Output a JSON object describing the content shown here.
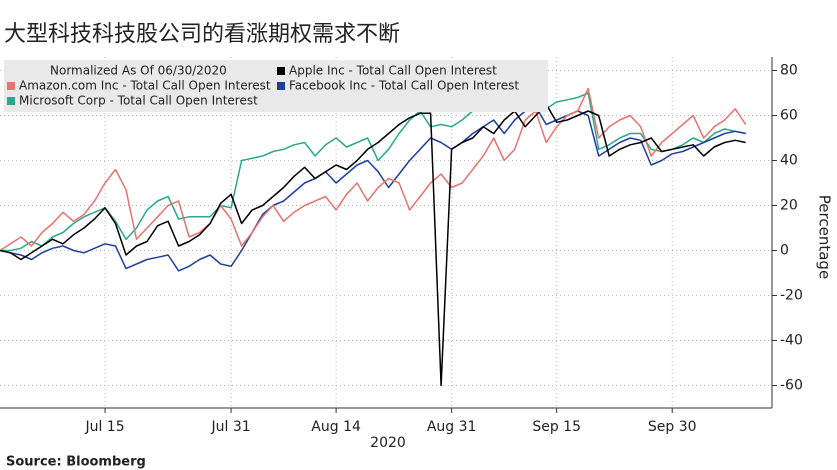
{
  "chart_data": {
    "type": "line",
    "title": "大型科技科技股公司的看涨期权需求不断",
    "legend_title": "Normalized As Of 06/30/2020",
    "y_label": "Percentage",
    "x_label": "2020",
    "source": "Source: Bloomberg",
    "x": [
      0,
      1,
      2,
      3,
      4,
      5,
      6,
      7,
      8,
      9,
      10,
      11,
      12,
      13,
      14,
      15,
      16,
      17,
      18,
      19,
      20,
      21,
      22,
      23,
      24,
      25,
      26,
      27,
      28,
      29,
      30,
      31,
      32,
      33,
      34,
      35,
      36,
      37,
      38,
      39,
      40,
      41,
      42,
      43,
      44,
      45,
      46,
      47,
      48,
      49,
      50,
      51,
      52,
      53,
      54,
      55,
      56,
      57,
      58,
      59,
      60,
      61,
      62,
      63,
      64,
      65,
      66,
      67,
      68,
      69,
      70,
      71
    ],
    "xlim": [
      0,
      73.5
    ],
    "xticks": [
      {
        "value": 10,
        "label": "Jul 15"
      },
      {
        "value": 22,
        "label": "Jul 31"
      },
      {
        "value": 32,
        "label": "Aug 14"
      },
      {
        "value": 43,
        "label": "Aug 31"
      },
      {
        "value": 53,
        "label": "Sep 15"
      },
      {
        "value": 64,
        "label": "Sep 30"
      }
    ],
    "ylim": [
      -70,
      86
    ],
    "yticks": [
      -60,
      -40,
      -20,
      0,
      20,
      40,
      60,
      80
    ],
    "grid": true,
    "series": [
      {
        "name": "Apple Inc - Total Call Open Interest",
        "color": "#000000",
        "values": [
          0,
          -1,
          -4,
          -1,
          2,
          5,
          3,
          7,
          10,
          14,
          19,
          12,
          -2,
          2,
          4,
          11,
          13,
          2,
          4,
          7,
          12,
          21,
          25,
          12,
          18,
          20,
          24,
          28,
          33,
          37,
          32,
          35,
          38,
          36,
          40,
          45,
          48,
          52,
          56,
          59,
          61,
          61,
          -60,
          45,
          48,
          50,
          55,
          52,
          58,
          62,
          55,
          60,
          65,
          57,
          58,
          60,
          62,
          60,
          42,
          45,
          47,
          48,
          50,
          44,
          45,
          46,
          47,
          42,
          46,
          48,
          49,
          48
        ]
      },
      {
        "name": "Amazon.com Inc - Total Call Open Interest",
        "color": "#e8736e",
        "values": [
          0,
          3,
          6,
          2,
          8,
          12,
          17,
          13,
          16,
          22,
          30,
          36,
          27,
          5,
          10,
          15,
          20,
          22,
          6,
          8,
          12,
          20,
          14,
          2,
          8,
          15,
          20,
          13,
          17,
          20,
          22,
          24,
          18,
          25,
          30,
          22,
          28,
          32,
          30,
          18,
          24,
          30,
          34,
          28,
          30,
          36,
          42,
          50,
          40,
          45,
          58,
          62,
          48,
          55,
          60,
          62,
          72,
          50,
          55,
          58,
          60,
          55,
          42,
          48,
          52,
          56,
          60,
          50,
          55,
          58,
          63,
          56
        ]
      },
      {
        "name": "Facebook Inc - Total Call Open Interest",
        "color": "#1f3fa0",
        "values": [
          0,
          -1,
          -2,
          -4,
          -1,
          1,
          2,
          0,
          -1,
          1,
          3,
          2,
          -8,
          -6,
          -4,
          -3,
          -2,
          -9,
          -7,
          -4,
          -2,
          -6,
          -7,
          0,
          8,
          16,
          20,
          22,
          26,
          30,
          32,
          35,
          30,
          34,
          38,
          40,
          35,
          28,
          34,
          40,
          45,
          50,
          48,
          45,
          48,
          52,
          55,
          58,
          52,
          58,
          62,
          64,
          56,
          58,
          60,
          62,
          60,
          42,
          45,
          48,
          50,
          49,
          38,
          40,
          43,
          44,
          46,
          48,
          50,
          52,
          53,
          52
        ]
      },
      {
        "name": "Microsoft Corp - Total Call Open Interest",
        "color": "#2aa88e",
        "values": [
          0,
          0,
          1,
          4,
          2,
          6,
          8,
          12,
          15,
          17,
          19,
          13,
          5,
          10,
          18,
          22,
          24,
          14,
          15,
          15,
          15,
          20,
          19,
          40,
          41,
          42,
          44,
          45,
          47,
          48,
          42,
          47,
          50,
          46,
          48,
          50,
          40,
          45,
          52,
          58,
          62,
          55,
          56,
          55,
          58,
          62,
          64,
          62,
          70,
          65,
          68,
          73,
          63,
          66,
          67,
          68,
          70,
          45,
          47,
          50,
          52,
          52,
          45,
          44,
          45,
          47,
          50,
          48,
          52,
          54,
          53,
          52
        ]
      }
    ]
  }
}
